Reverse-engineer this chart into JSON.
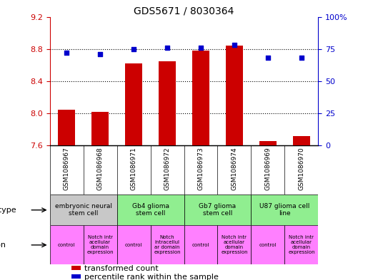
{
  "title": "GDS5671 / 8030364",
  "samples": [
    "GSM1086967",
    "GSM1086968",
    "GSM1086971",
    "GSM1086972",
    "GSM1086973",
    "GSM1086974",
    "GSM1086969",
    "GSM1086970"
  ],
  "transformed_counts": [
    8.05,
    8.02,
    8.62,
    8.65,
    8.78,
    8.84,
    7.66,
    7.72
  ],
  "percentile_ranks": [
    72,
    71,
    75,
    76,
    76,
    78,
    68,
    68
  ],
  "ylim_left": [
    7.6,
    9.2
  ],
  "ylim_right": [
    0,
    100
  ],
  "yticks_left": [
    7.6,
    8.0,
    8.4,
    8.8,
    9.2
  ],
  "yticks_right": [
    0,
    25,
    50,
    75,
    100
  ],
  "bar_color": "#cc0000",
  "dot_color": "#0000cc",
  "bar_bottom": 7.6,
  "cell_type_groups": [
    {
      "label": "embryonic neural\nstem cell",
      "start": 0,
      "end": 2,
      "color": "#c8c8c8"
    },
    {
      "label": "Gb4 glioma\nstem cell",
      "start": 2,
      "end": 4,
      "color": "#90ee90"
    },
    {
      "label": "Gb7 glioma\nstem cell",
      "start": 4,
      "end": 6,
      "color": "#90ee90"
    },
    {
      "label": "U87 glioma cell\nline",
      "start": 6,
      "end": 8,
      "color": "#90ee90"
    }
  ],
  "genotype_groups": [
    {
      "label": "control",
      "start": 0,
      "end": 1,
      "color": "#ff80ff"
    },
    {
      "label": "Notch intr\nacellular\ndomain\nexpression",
      "start": 1,
      "end": 2,
      "color": "#ff80ff"
    },
    {
      "label": "control",
      "start": 2,
      "end": 3,
      "color": "#ff80ff"
    },
    {
      "label": "Notch\nintracellul\nar domain\nexpression",
      "start": 3,
      "end": 4,
      "color": "#ff80ff"
    },
    {
      "label": "control",
      "start": 4,
      "end": 5,
      "color": "#ff80ff"
    },
    {
      "label": "Notch intr\nacellular\ndomain\nexpression",
      "start": 5,
      "end": 6,
      "color": "#ff80ff"
    },
    {
      "label": "control",
      "start": 6,
      "end": 7,
      "color": "#ff80ff"
    },
    {
      "label": "Notch intr\nacellular\ndomain\nexpression",
      "start": 7,
      "end": 8,
      "color": "#ff80ff"
    }
  ],
  "left_axis_color": "#cc0000",
  "right_axis_color": "#0000cc",
  "legend_items": [
    {
      "color": "#cc0000",
      "label": "transformed count"
    },
    {
      "color": "#0000cc",
      "label": "percentile rank within the sample"
    }
  ],
  "grid_lines": [
    8.0,
    8.4,
    8.8
  ]
}
